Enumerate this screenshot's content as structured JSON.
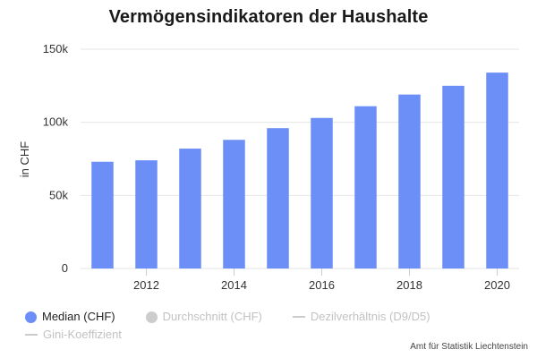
{
  "chart_data": {
    "type": "bar",
    "title": "Vermögensindikatoren der Haushalte",
    "ylabel": "in CHF",
    "xlabel": "",
    "x": [
      2011,
      2012,
      2013,
      2014,
      2015,
      2016,
      2017,
      2018,
      2019,
      2020
    ],
    "x_tick_labels": [
      "2012",
      "2014",
      "2016",
      "2018",
      "2020"
    ],
    "y_tick_labels": [
      "0",
      "50k",
      "100k",
      "150k"
    ],
    "ylim": [
      0,
      150000
    ],
    "grid": true,
    "series": [
      {
        "name": "Median (CHF)",
        "color": "#6b8ef7",
        "values": [
          73000,
          74000,
          82000,
          88000,
          96000,
          103000,
          111000,
          119000,
          125000,
          134000
        ]
      }
    ],
    "legend": {
      "placement": "bottom-left",
      "items": [
        {
          "label": "Median (CHF)",
          "marker": "circle",
          "color": "#6b8ef7",
          "visible": true
        },
        {
          "label": "Durchschnitt (CHF)",
          "marker": "circle",
          "color": "#cccccc",
          "visible": false
        },
        {
          "label": "Dezilverhältnis (D9/D5)",
          "marker": "line",
          "color": "#cccccc",
          "visible": false
        },
        {
          "label": "Gini-Koeffizient",
          "marker": "line",
          "color": "#cccccc",
          "visible": false
        }
      ]
    },
    "credit": "Amt für Statistik Liechtenstein"
  }
}
